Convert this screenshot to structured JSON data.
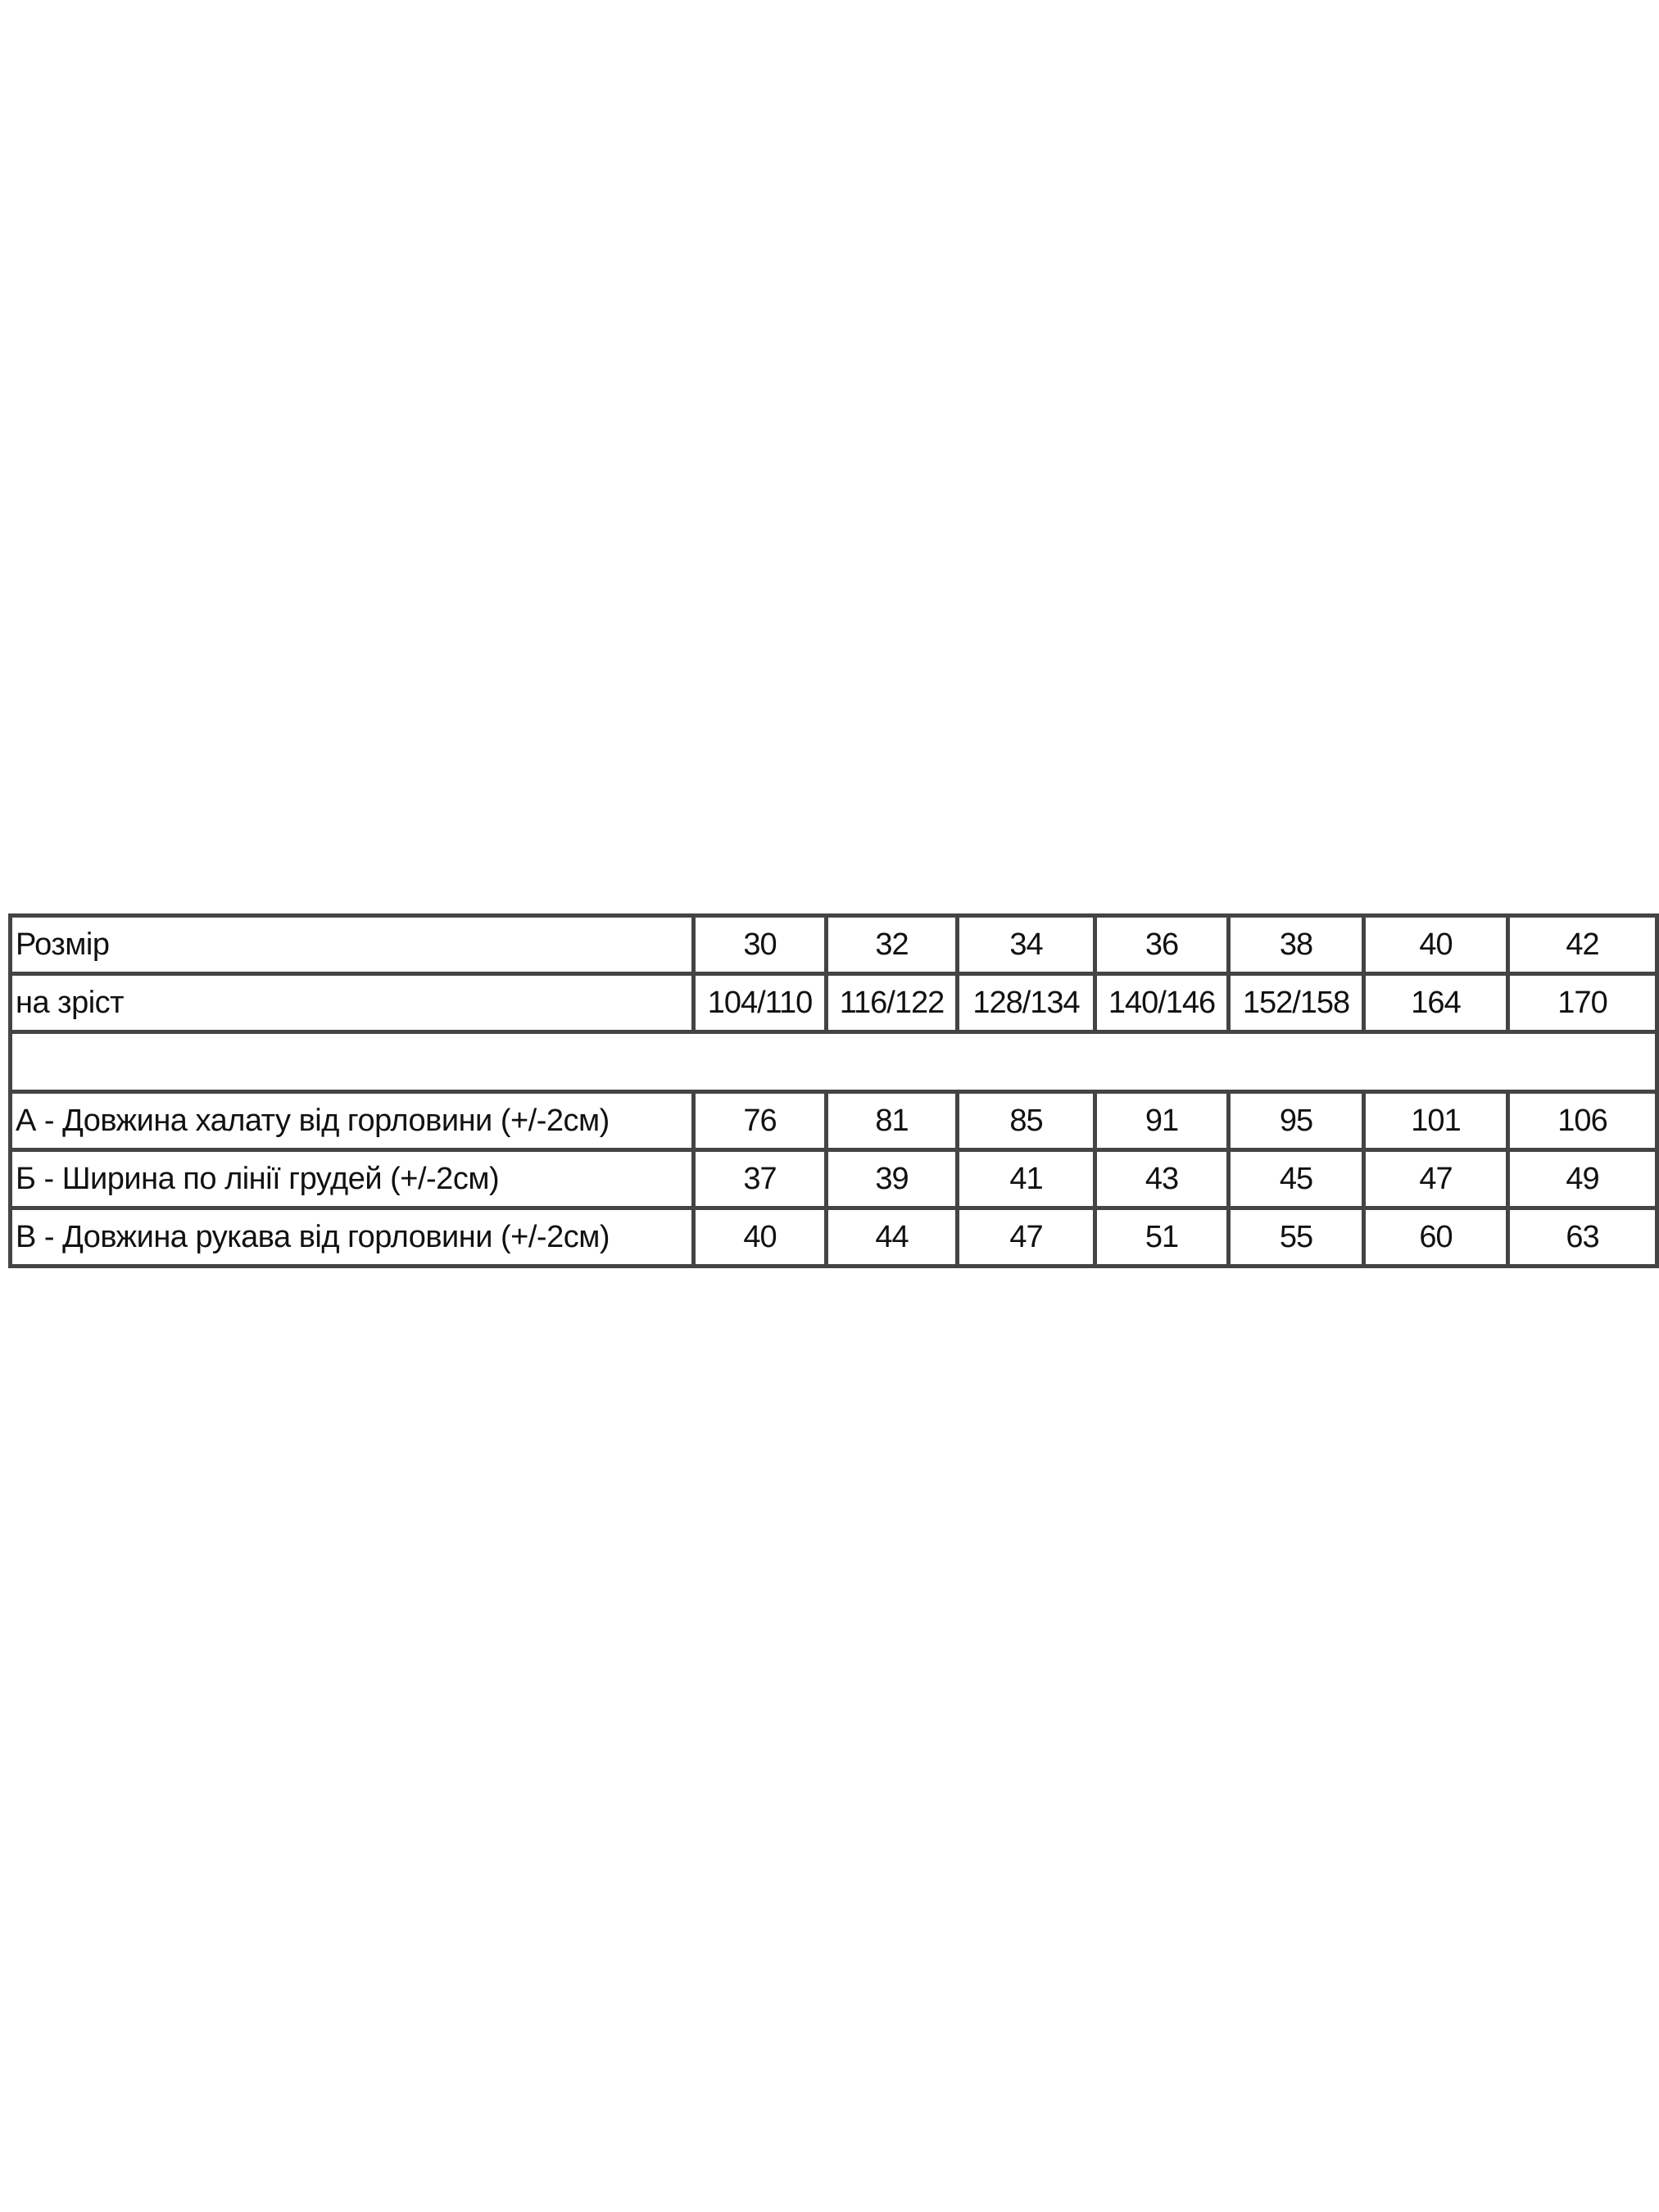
{
  "table": {
    "rows": [
      {
        "label": "Розмір",
        "values": [
          "30",
          "32",
          "34",
          "36",
          "38",
          "40",
          "42"
        ]
      },
      {
        "label": "на зріст",
        "values": [
          "104/110",
          "116/122",
          "128/134",
          "140/146",
          "152/158",
          "164",
          "170"
        ]
      },
      {
        "label": "А - Довжина халату від горловини (+/-2см)",
        "values": [
          "76",
          "81",
          "85",
          "91",
          "95",
          "101",
          "106"
        ]
      },
      {
        "label": "Б - Ширина по лінії грудей (+/-2см)",
        "values": [
          "37",
          "39",
          "41",
          "43",
          "45",
          "47",
          "49"
        ]
      },
      {
        "label": "В - Довжина рукава від горловини (+/-2см)",
        "values": [
          "40",
          "44",
          "47",
          "51",
          "55",
          "60",
          "63"
        ]
      }
    ],
    "border_color": "#444444"
  }
}
